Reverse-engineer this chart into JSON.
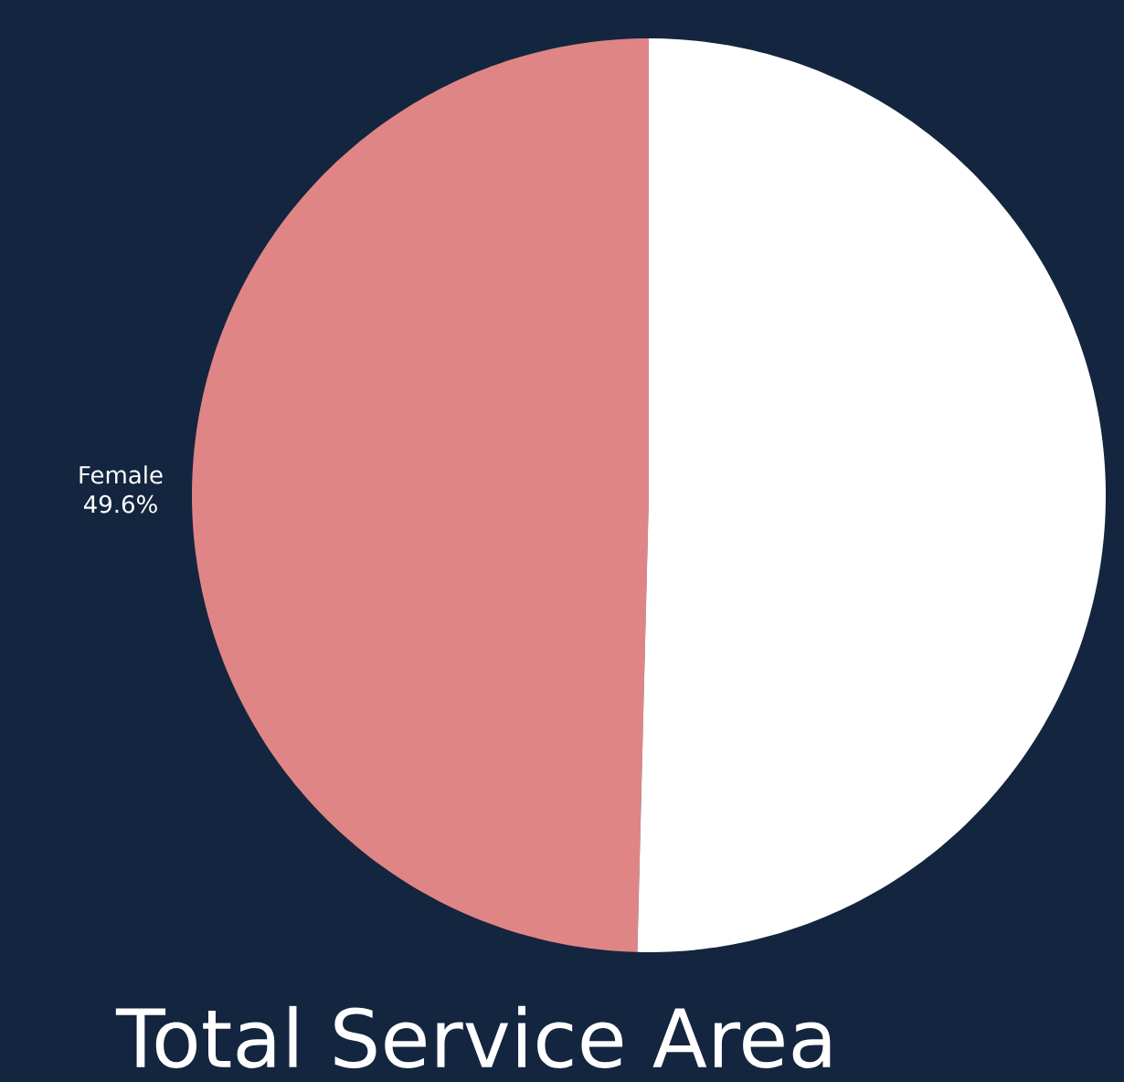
{
  "chart_data": {
    "type": "pie",
    "title": "Total Service Area",
    "categories": [
      "Female",
      null
    ],
    "values": [
      49.6,
      50.4
    ],
    "value_labels": [
      "49.6%",
      null
    ],
    "colors": [
      "#e08585",
      "#ffffff"
    ]
  }
}
